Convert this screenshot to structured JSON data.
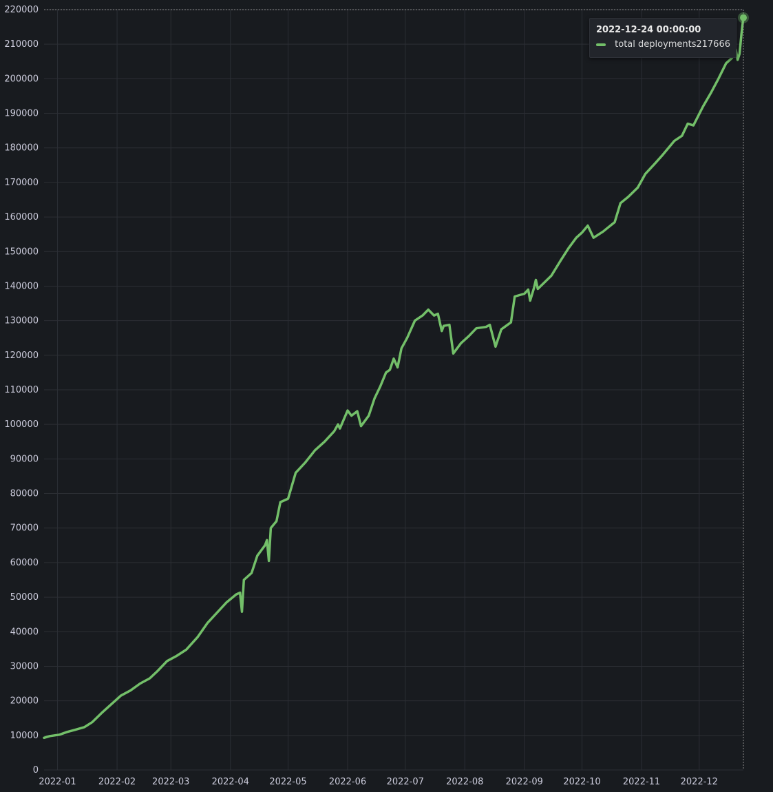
{
  "chart_data": {
    "type": "line",
    "title": "",
    "xlabel": "",
    "ylabel": "",
    "ylim": [
      0,
      220000
    ],
    "yticks": [
      0,
      10000,
      20000,
      30000,
      40000,
      50000,
      60000,
      70000,
      80000,
      90000,
      100000,
      110000,
      120000,
      130000,
      140000,
      150000,
      160000,
      170000,
      180000,
      190000,
      200000,
      210000,
      220000
    ],
    "xlim": [
      "2021-12-25",
      "2022-12-24"
    ],
    "xticks": [
      "2022-01",
      "2022-02",
      "2022-03",
      "2022-04",
      "2022-05",
      "2022-06",
      "2022-07",
      "2022-08",
      "2022-09",
      "2022-10",
      "2022-11",
      "2022-12"
    ],
    "grid": true,
    "series": [
      {
        "name": "total deployments",
        "color": "#73bf69",
        "points": [
          [
            "2021-12-25",
            9300
          ],
          [
            "2021-12-28",
            9800
          ],
          [
            "2022-01-02",
            10200
          ],
          [
            "2022-01-06",
            11000
          ],
          [
            "2022-01-10",
            11600
          ],
          [
            "2022-01-15",
            12400
          ],
          [
            "2022-01-19",
            13800
          ],
          [
            "2022-01-24",
            16500
          ],
          [
            "2022-01-30",
            19500
          ],
          [
            "2022-02-03",
            21500
          ],
          [
            "2022-02-08",
            23000
          ],
          [
            "2022-02-13",
            25000
          ],
          [
            "2022-02-18",
            26500
          ],
          [
            "2022-02-22",
            28600
          ],
          [
            "2022-02-27",
            31500
          ],
          [
            "2022-03-04",
            33000
          ],
          [
            "2022-03-09",
            34800
          ],
          [
            "2022-03-15",
            38500
          ],
          [
            "2022-03-20",
            42500
          ],
          [
            "2022-03-25",
            45500
          ],
          [
            "2022-03-30",
            48500
          ],
          [
            "2022-04-04",
            50800
          ],
          [
            "2022-04-06",
            51300
          ],
          [
            "2022-04-07",
            45800
          ],
          [
            "2022-04-08",
            55000
          ],
          [
            "2022-04-12",
            57000
          ],
          [
            "2022-04-15",
            62000
          ],
          [
            "2022-04-19",
            65000
          ],
          [
            "2022-04-20",
            66500
          ],
          [
            "2022-04-21",
            60500
          ],
          [
            "2022-04-22",
            70000
          ],
          [
            "2022-04-25",
            72000
          ],
          [
            "2022-04-27",
            77500
          ],
          [
            "2022-05-01",
            78500
          ],
          [
            "2022-05-05",
            86000
          ],
          [
            "2022-05-10",
            89000
          ],
          [
            "2022-05-15",
            92500
          ],
          [
            "2022-05-20",
            95000
          ],
          [
            "2022-05-25",
            98000
          ],
          [
            "2022-05-27",
            100000
          ],
          [
            "2022-05-28",
            98800
          ],
          [
            "2022-06-01",
            104000
          ],
          [
            "2022-06-03",
            102500
          ],
          [
            "2022-06-06",
            103800
          ],
          [
            "2022-06-08",
            99500
          ],
          [
            "2022-06-12",
            102500
          ],
          [
            "2022-06-15",
            107500
          ],
          [
            "2022-06-18",
            111000
          ],
          [
            "2022-06-21",
            115000
          ],
          [
            "2022-06-23",
            115800
          ],
          [
            "2022-06-25",
            119000
          ],
          [
            "2022-06-27",
            116500
          ],
          [
            "2022-06-29",
            122000
          ],
          [
            "2022-07-02",
            125000
          ],
          [
            "2022-07-06",
            130000
          ],
          [
            "2022-07-10",
            131500
          ],
          [
            "2022-07-13",
            133200
          ],
          [
            "2022-07-16",
            131500
          ],
          [
            "2022-07-18",
            132000
          ],
          [
            "2022-07-20",
            127000
          ],
          [
            "2022-07-21",
            128500
          ],
          [
            "2022-07-24",
            128800
          ],
          [
            "2022-07-26",
            120500
          ],
          [
            "2022-07-30",
            123500
          ],
          [
            "2022-08-03",
            125500
          ],
          [
            "2022-08-07",
            127800
          ],
          [
            "2022-08-12",
            128200
          ],
          [
            "2022-08-14",
            128800
          ],
          [
            "2022-08-17",
            122500
          ],
          [
            "2022-08-20",
            127500
          ],
          [
            "2022-08-25",
            129500
          ],
          [
            "2022-08-27",
            137000
          ],
          [
            "2022-09-01",
            137800
          ],
          [
            "2022-09-03",
            139000
          ],
          [
            "2022-09-04",
            135800
          ],
          [
            "2022-09-06",
            139500
          ],
          [
            "2022-09-07",
            141800
          ],
          [
            "2022-09-08",
            139200
          ],
          [
            "2022-09-15",
            143000
          ],
          [
            "2022-09-20",
            147500
          ],
          [
            "2022-09-24",
            151000
          ],
          [
            "2022-09-28",
            154000
          ],
          [
            "2022-10-01",
            155500
          ],
          [
            "2022-10-04",
            157500
          ],
          [
            "2022-10-07",
            154000
          ],
          [
            "2022-10-12",
            155800
          ],
          [
            "2022-10-18",
            158500
          ],
          [
            "2022-10-21",
            164000
          ],
          [
            "2022-10-25",
            165800
          ],
          [
            "2022-10-30",
            168500
          ],
          [
            "2022-11-03",
            172500
          ],
          [
            "2022-11-08",
            175500
          ],
          [
            "2022-11-12",
            178000
          ],
          [
            "2022-11-18",
            182000
          ],
          [
            "2022-11-22",
            183500
          ],
          [
            "2022-11-25",
            187000
          ],
          [
            "2022-11-28",
            186500
          ],
          [
            "2022-12-03",
            192000
          ],
          [
            "2022-12-07",
            195800
          ],
          [
            "2022-12-11",
            200000
          ],
          [
            "2022-12-15",
            204500
          ],
          [
            "2022-12-18",
            206000
          ],
          [
            "2022-12-20",
            208500
          ],
          [
            "2022-12-21",
            205500
          ],
          [
            "2022-12-22",
            207200
          ],
          [
            "2022-12-23",
            213000
          ],
          [
            "2022-12-24",
            217666
          ]
        ]
      }
    ]
  },
  "tooltip": {
    "time": "2022-12-24 00:00:00",
    "series_name": "total deployments",
    "value": "217666"
  }
}
